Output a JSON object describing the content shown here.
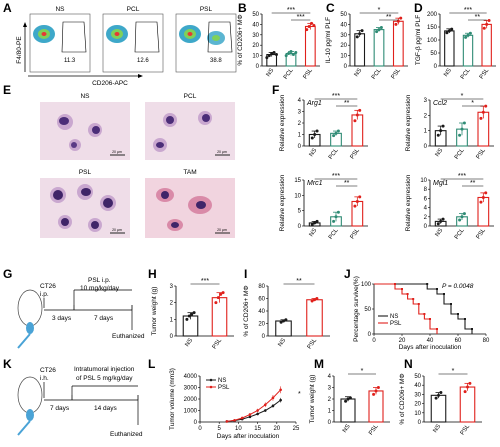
{
  "panel_labels": [
    "A",
    "B",
    "C",
    "D",
    "E",
    "F",
    "G",
    "H",
    "I",
    "J",
    "K",
    "L",
    "M",
    "N"
  ],
  "colors": {
    "NS": "#1a1a1a",
    "PCL": "#2e8b74",
    "PSL": "#e0201b"
  },
  "flow": {
    "ylabel": "F4/80-PE",
    "xlabel": "CD206-APC",
    "panels": [
      {
        "title": "NS",
        "value": "11.3"
      },
      {
        "title": "PCL",
        "value": "12.6"
      },
      {
        "title": "PSL",
        "value": "38.8"
      }
    ]
  },
  "micro": {
    "panels": [
      {
        "title": "NS",
        "scale": "20 μm"
      },
      {
        "title": "PCL",
        "scale": "20 μm"
      },
      {
        "title": "PSL",
        "scale": "20 μm"
      },
      {
        "title": "TAM",
        "scale": "20 μm"
      }
    ]
  },
  "scheme_g": {
    "tumor": "CT26",
    "route": "i.p.",
    "treatment": "PSL i.p.",
    "dose": "10 mg/kg/day",
    "t1": "3 days",
    "t2": "7 days",
    "end": "Euthanized"
  },
  "scheme_k": {
    "tumor": "CT26",
    "route": "i.h.",
    "treatment1": "Intratumoral injection",
    "treatment2": "of PSL 5 mg/kg/day",
    "t1": "7 days",
    "t2": "14 days",
    "end": "Euthanized"
  },
  "chart_data": [
    {
      "panel": "B",
      "type": "bar",
      "categories": [
        "NS",
        "PCL",
        "PSL"
      ],
      "ylabel": "% of CD206+ MΦ",
      "ylim": [
        0,
        50
      ],
      "yticks": [
        0,
        10,
        20,
        30,
        40,
        50
      ],
      "values": [
        11,
        12,
        38
      ],
      "errors": [
        2,
        2,
        3
      ],
      "points": [
        [
          8,
          10,
          12,
          13,
          11
        ],
        [
          10,
          12,
          14,
          11,
          13
        ],
        [
          35,
          38,
          41,
          39
        ]
      ],
      "sig": [
        "***",
        "***"
      ]
    },
    {
      "panel": "C",
      "type": "bar",
      "categories": [
        "NS",
        "PCL",
        "PSL"
      ],
      "ylabel": "IL-10 pg/ml PLF",
      "ylim": [
        0,
        50
      ],
      "yticks": [
        0,
        10,
        20,
        30,
        40,
        50
      ],
      "values": [
        31,
        35,
        43
      ],
      "errors": [
        3,
        2,
        3
      ],
      "points": [
        [
          28,
          31,
          34
        ],
        [
          33,
          35,
          37
        ],
        [
          40,
          43,
          46
        ]
      ],
      "sig": [
        "*",
        "**"
      ]
    },
    {
      "panel": "D",
      "type": "bar",
      "categories": [
        "NS",
        "PCL",
        "PSL"
      ],
      "ylabel": "TGF-β pg/ml PLF",
      "ylim": [
        0,
        200
      ],
      "yticks": [
        0,
        50,
        100,
        150,
        200
      ],
      "values": [
        135,
        118,
        160
      ],
      "errors": [
        8,
        8,
        15
      ],
      "points": [
        [
          128,
          135,
          142
        ],
        [
          110,
          118,
          126
        ],
        [
          145,
          160,
          175
        ]
      ],
      "sig": [
        "***",
        "**"
      ]
    },
    {
      "panel": "F1",
      "type": "bar",
      "gene": "Arg1",
      "categories": [
        "NS",
        "PCL",
        "PSL"
      ],
      "ylabel": "Relative expression",
      "ylim": [
        0,
        4
      ],
      "yticks": [
        0,
        1,
        2,
        3,
        4
      ],
      "values": [
        1.0,
        1.1,
        2.7
      ],
      "errors": [
        0.3,
        0.2,
        0.4
      ],
      "points": [
        [
          0.7,
          1.0,
          1.3
        ],
        [
          0.9,
          1.1,
          1.3
        ],
        [
          2.2,
          2.7,
          3.1
        ]
      ],
      "sig": [
        "***",
        "**"
      ]
    },
    {
      "panel": "F2",
      "type": "bar",
      "gene": "Ccl2",
      "categories": [
        "NS",
        "PCL",
        "PSL"
      ],
      "ylabel": "Relative expression",
      "ylim": [
        0,
        3
      ],
      "yticks": [
        0,
        1,
        2,
        3
      ],
      "values": [
        1.0,
        1.1,
        2.2
      ],
      "errors": [
        0.3,
        0.4,
        0.4
      ],
      "points": [
        [
          0.7,
          1.0,
          1.3
        ],
        [
          0.7,
          1.1,
          1.5
        ],
        [
          1.8,
          2.2,
          2.6
        ]
      ],
      "sig": [
        "*",
        "*"
      ]
    },
    {
      "panel": "F3",
      "type": "bar",
      "gene": "Mrc1",
      "categories": [
        "NS",
        "PCL",
        "PSL"
      ],
      "ylabel": "Relative expression",
      "ylim": [
        0,
        15
      ],
      "yticks": [
        0,
        5,
        10,
        15
      ],
      "values": [
        1.0,
        3.0,
        8.0
      ],
      "errors": [
        0.5,
        1.5,
        1.5
      ],
      "points": [
        [
          0.5,
          1.0,
          1.5
        ],
        [
          1.5,
          3.0,
          4.5
        ],
        [
          6.5,
          8.0,
          9.5
        ]
      ],
      "sig": [
        "***",
        "**"
      ]
    },
    {
      "panel": "F4",
      "type": "bar",
      "gene": "Mgl1",
      "categories": [
        "NS",
        "PCL",
        "PSL"
      ],
      "ylabel": "Relative expression",
      "ylim": [
        0,
        10
      ],
      "yticks": [
        0,
        2,
        4,
        6,
        8,
        10
      ],
      "values": [
        1.0,
        2.0,
        6.2
      ],
      "errors": [
        0.5,
        0.7,
        1.0
      ],
      "points": [
        [
          0.5,
          1.0,
          1.5
        ],
        [
          1.3,
          2.0,
          2.7
        ],
        [
          5.2,
          6.2,
          7.2
        ]
      ],
      "sig": [
        "***",
        "**"
      ]
    },
    {
      "panel": "H",
      "type": "bar",
      "categories": [
        "NS",
        "PSL"
      ],
      "ylabel": "Tumor weight (g)",
      "ylim": [
        0,
        3
      ],
      "yticks": [
        0,
        1,
        2,
        3
      ],
      "values": [
        1.2,
        2.3
      ],
      "errors": [
        0.2,
        0.3
      ],
      "points": [
        [
          1.0,
          1.2,
          1.3,
          1.4
        ],
        [
          2.0,
          2.3,
          2.5,
          2.6
        ]
      ],
      "sig": [
        "***"
      ]
    },
    {
      "panel": "I",
      "type": "bar",
      "categories": [
        "NS",
        "PSL"
      ],
      "ylabel": "% of CD206+ MΦ",
      "ylim": [
        0,
        80
      ],
      "yticks": [
        0,
        20,
        40,
        60,
        80
      ],
      "values": [
        24,
        58
      ],
      "errors": [
        2,
        2
      ],
      "points": [
        [
          22,
          24,
          26
        ],
        [
          56,
          58,
          60
        ]
      ],
      "sig": [
        "**"
      ]
    },
    {
      "panel": "J",
      "type": "line",
      "subtype": "survival",
      "ylabel": "Percentage survive(%)",
      "xlabel": "Days after inoculation",
      "xlim": [
        0,
        80
      ],
      "ylim": [
        0,
        100
      ],
      "xticks": [
        0,
        20,
        40,
        60,
        80
      ],
      "yticks": [
        0,
        50,
        100
      ],
      "annotation": "P = 0.0048",
      "series": [
        {
          "name": "NS",
          "x": [
            0,
            38,
            38,
            45,
            45,
            50,
            50,
            55,
            55,
            60,
            60,
            65,
            65,
            70,
            70
          ],
          "y": [
            100,
            100,
            90,
            90,
            80,
            80,
            60,
            60,
            40,
            40,
            30,
            30,
            10,
            10,
            0
          ]
        },
        {
          "name": "PSL",
          "x": [
            0,
            15,
            15,
            20,
            20,
            24,
            24,
            28,
            28,
            32,
            32,
            36,
            36,
            40,
            40,
            45,
            45
          ],
          "y": [
            100,
            100,
            90,
            90,
            80,
            80,
            70,
            70,
            60,
            60,
            40,
            40,
            30,
            30,
            10,
            10,
            0
          ]
        }
      ]
    },
    {
      "panel": "L",
      "type": "line",
      "ylabel": "Tumor volume (mm3)",
      "xlabel": "Days after inoculation",
      "xlim": [
        0,
        25
      ],
      "ylim": [
        0,
        4000
      ],
      "xticks": [
        0,
        5,
        10,
        15,
        20,
        25
      ],
      "yticks": [
        0,
        1000,
        2000,
        3000,
        4000
      ],
      "annotation": "*",
      "series": [
        {
          "name": "NS",
          "x": [
            7,
            9,
            11,
            13,
            15,
            17,
            19,
            21
          ],
          "y": [
            50,
            120,
            250,
            450,
            700,
            1000,
            1400,
            1900
          ],
          "err": [
            20,
            40,
            60,
            80,
            100,
            120,
            150,
            200
          ]
        },
        {
          "name": "PSL",
          "x": [
            7,
            9,
            11,
            13,
            15,
            17,
            19,
            21
          ],
          "y": [
            50,
            150,
            350,
            650,
            1000,
            1500,
            2100,
            2800
          ],
          "err": [
            20,
            50,
            80,
            120,
            150,
            200,
            250,
            300
          ]
        }
      ]
    },
    {
      "panel": "M",
      "type": "bar",
      "categories": [
        "NS",
        "PSL"
      ],
      "ylabel": "Tumor weight (g)",
      "ylim": [
        0,
        4
      ],
      "yticks": [
        0,
        1,
        2,
        3,
        4
      ],
      "values": [
        2.0,
        2.7
      ],
      "errors": [
        0.2,
        0.3
      ],
      "points": [
        [
          1.8,
          2.0,
          2.1
        ],
        [
          2.4,
          2.7,
          3.0
        ]
      ],
      "sig": [
        "*"
      ]
    },
    {
      "panel": "N",
      "type": "bar",
      "categories": [
        "NS",
        "PSL"
      ],
      "ylabel": "% of CD206+ MΦ",
      "ylim": [
        0,
        50
      ],
      "yticks": [
        0,
        10,
        20,
        30,
        40,
        50
      ],
      "values": [
        29,
        38
      ],
      "errors": [
        3,
        4
      ],
      "points": [
        [
          26,
          29,
          32
        ],
        [
          33,
          38,
          42
        ]
      ],
      "sig": [
        "*"
      ]
    }
  ]
}
